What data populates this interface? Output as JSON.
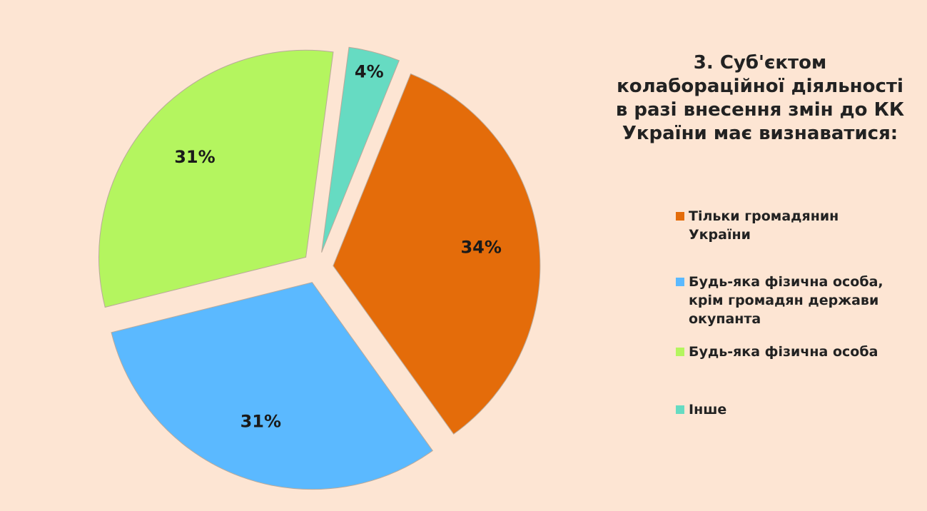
{
  "chart_data": {
    "type": "pie",
    "title": "3. Суб'єктом колабораційної діяльності в разі внесення змін до КК України має визнаватися:",
    "categories": [
      "Тільки громадянин України",
      "Будь-яка фізична особа, крім громадян держави окупанта",
      "Будь-яка фізична особа",
      "Інше"
    ],
    "values": [
      34,
      31,
      31,
      4
    ],
    "value_labels": [
      "34%",
      "31%",
      "31%",
      "4%"
    ],
    "colors": [
      "#e46c0a",
      "#5bb9ff",
      "#b4f55f",
      "#66dbc2"
    ],
    "legend": "right"
  }
}
